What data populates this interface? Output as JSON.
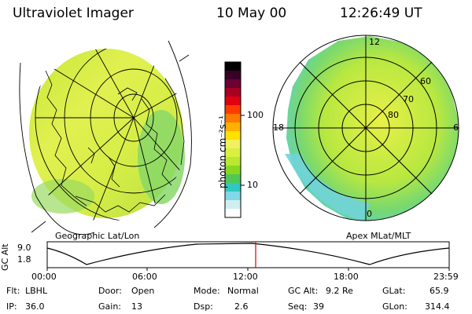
{
  "header": {
    "instrument": "Ultraviolet Imager",
    "date": "10 May 00",
    "time": "12:26:49 UT"
  },
  "colorbar": {
    "unit_label": "photon cm⁻²s⁻¹",
    "ticks": [
      "100",
      "10"
    ],
    "colors": [
      "#000000",
      "#3a0026",
      "#6b0033",
      "#a80020",
      "#e00010",
      "#ff3c00",
      "#ff7a00",
      "#ffb000",
      "#ffe000",
      "#f0f060",
      "#d8f040",
      "#b8e830",
      "#88d820",
      "#50c858",
      "#30c8c0",
      "#80d8e8",
      "#d0eef0",
      "#ffffff"
    ]
  },
  "left_panel": {
    "label": "Geographic Lat/Lon"
  },
  "right_panel": {
    "label": "Apex MLat/MLT",
    "mlt_labels": {
      "top": "12",
      "left": "18",
      "right": "6",
      "bottom": "0"
    },
    "lat_labels": [
      "60",
      "70",
      "80"
    ]
  },
  "altitude_plot": {
    "y_label": "GC Alt",
    "y_ticks": [
      "9.0",
      "1.8"
    ],
    "x_ticks": [
      "00:00",
      "06:00",
      "12:00",
      "18:00",
      "23:59"
    ],
    "current_marker_color": "#e00000"
  },
  "footer": {
    "flt_label": "Flt:",
    "flt_value": "LBHL",
    "ip_label": "IP:",
    "ip_value": "36.0",
    "door_label": "Door:",
    "door_value": "Open",
    "gain_label": "Gain:",
    "gain_value": "13",
    "mode_label": "Mode:",
    "mode_value": "Normal",
    "dsp_label": "Dsp:",
    "dsp_value": "2.6",
    "gcalt_label": "GC Alt:",
    "gcalt_value": "9.2 Re",
    "seq_label": "Seq:",
    "seq_value": "39",
    "glat_label": "GLat:",
    "glat_value": "65.9",
    "glon_label": "GLon:",
    "glon_value": "314.4"
  }
}
